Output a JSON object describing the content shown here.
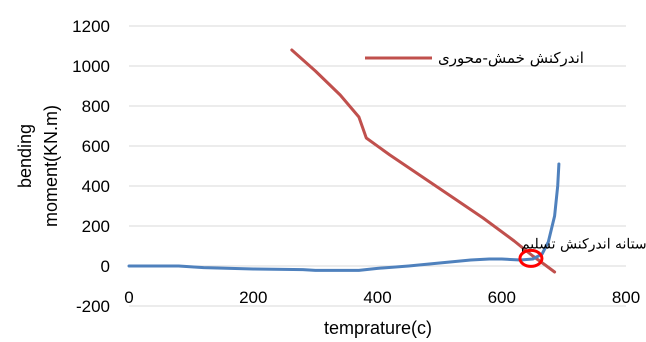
{
  "chart_data": {
    "type": "line",
    "title": "",
    "xlabel": "temprature(c)",
    "ylabel_line1": "bending",
    "ylabel_line2": "moment(KN.m)",
    "xlim": [
      0,
      800
    ],
    "ylim": [
      -200,
      1200
    ],
    "x_ticks": [
      "0",
      "200",
      "400",
      "600",
      "800"
    ],
    "y_ticks": [
      "-200",
      "0",
      "200",
      "400",
      "600",
      "800",
      "1000",
      "1200"
    ],
    "grid": "horizontal",
    "legend_position": "top-right",
    "series": [
      {
        "name": "اندرکنش خمش-محوری",
        "color": "#C0504D",
        "points": [
          [
            262,
            1080
          ],
          [
            300,
            975
          ],
          [
            340,
            855
          ],
          [
            370,
            745
          ],
          [
            382,
            640
          ],
          [
            420,
            555
          ],
          [
            470,
            450
          ],
          [
            520,
            345
          ],
          [
            570,
            240
          ],
          [
            620,
            125
          ],
          [
            650,
            50
          ],
          [
            670,
            5
          ],
          [
            685,
            -30
          ]
        ]
      },
      {
        "name": "",
        "color": "#4F81BD",
        "points": [
          [
            0,
            0
          ],
          [
            80,
            0
          ],
          [
            120,
            -8
          ],
          [
            200,
            -15
          ],
          [
            280,
            -18
          ],
          [
            300,
            -22
          ],
          [
            370,
            -22
          ],
          [
            400,
            -12
          ],
          [
            450,
            0
          ],
          [
            500,
            15
          ],
          [
            550,
            30
          ],
          [
            580,
            35
          ],
          [
            600,
            35
          ],
          [
            630,
            30
          ],
          [
            650,
            35
          ],
          [
            665,
            60
          ],
          [
            675,
            120
          ],
          [
            685,
            250
          ],
          [
            690,
            400
          ],
          [
            692,
            510
          ]
        ]
      }
    ],
    "annotation": {
      "text": "آستانه اندرکنش تسلیم",
      "x": 647,
      "y": 38,
      "marker_color": "#FF0000"
    }
  }
}
